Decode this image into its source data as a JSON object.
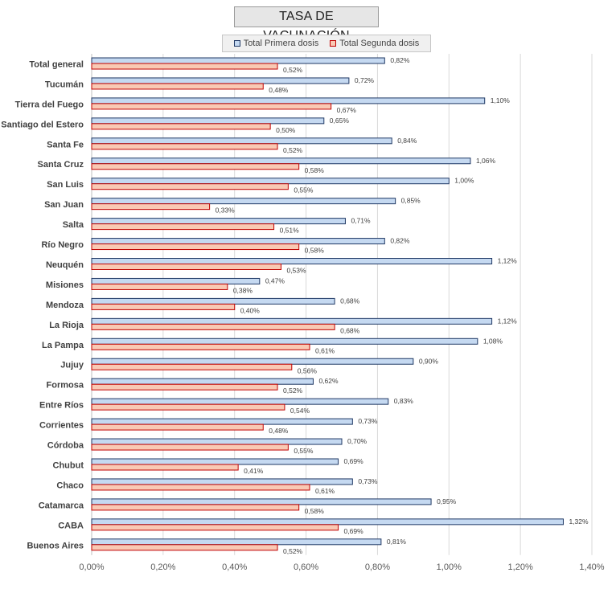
{
  "chart_data": {
    "type": "bar",
    "orientation": "horizontal",
    "title": "TASA DE VACUNACIÓN",
    "categories": [
      "Total general",
      "Tucumán",
      "Tierra del Fuego",
      "Santiago del Estero",
      "Santa Fe",
      "Santa Cruz",
      "San Luis",
      "San Juan",
      "Salta",
      "Río Negro",
      "Neuquén",
      "Misiones",
      "Mendoza",
      "La Rioja",
      "La Pampa",
      "Jujuy",
      "Formosa",
      "Entre Ríos",
      "Corrientes",
      "Córdoba",
      "Chubut",
      "Chaco",
      "Catamarca",
      "CABA",
      "Buenos Aires"
    ],
    "series": [
      {
        "name": "Total Primera dosis",
        "color": "#c5d9f1",
        "border": "#1f3864",
        "values": [
          0.82,
          0.72,
          1.1,
          0.65,
          0.84,
          1.06,
          1.0,
          0.85,
          0.71,
          0.82,
          1.12,
          0.47,
          0.68,
          1.12,
          1.08,
          0.9,
          0.62,
          0.83,
          0.73,
          0.7,
          0.69,
          0.73,
          0.95,
          1.32,
          0.81
        ],
        "labels": [
          "0,82%",
          "0,72%",
          "1,10%",
          "0,65%",
          "0,84%",
          "1,06%",
          "1,00%",
          "0,85%",
          "0,71%",
          "0,82%",
          "1,12%",
          "0,47%",
          "0,68%",
          "1,12%",
          "1,08%",
          "0,90%",
          "0,62%",
          "0,83%",
          "0,73%",
          "0,70%",
          "0,69%",
          "0,73%",
          "0,95%",
          "1,32%",
          "0,81%"
        ]
      },
      {
        "name": "Total Segunda dosis",
        "color": "#f9c9b4",
        "border": "#c00000",
        "values": [
          0.52,
          0.48,
          0.67,
          0.5,
          0.52,
          0.58,
          0.55,
          0.33,
          0.51,
          0.58,
          0.53,
          0.38,
          0.4,
          0.68,
          0.61,
          0.56,
          0.52,
          0.54,
          0.48,
          0.55,
          0.41,
          0.61,
          0.58,
          0.69,
          0.52
        ],
        "labels": [
          "0,52%",
          "0,48%",
          "0,67%",
          "0,50%",
          "0,52%",
          "0,58%",
          "0,55%",
          "0,33%",
          "0,51%",
          "0,58%",
          "0,53%",
          "0,38%",
          "0,40%",
          "0,68%",
          "0,61%",
          "0,56%",
          "0,52%",
          "0,54%",
          "0,48%",
          "0,55%",
          "0,41%",
          "0,61%",
          "0,58%",
          "0,69%",
          "0,52%"
        ]
      }
    ],
    "xlim": [
      0,
      1.4
    ],
    "xticks": [
      0,
      0.2,
      0.4,
      0.6,
      0.8,
      1.0,
      1.2,
      1.4
    ],
    "xtick_labels": [
      "0,00%",
      "0,20%",
      "0,40%",
      "0,60%",
      "0,80%",
      "1,00%",
      "1,20%",
      "1,40%"
    ],
    "grid": "vertical",
    "legend": "top"
  }
}
